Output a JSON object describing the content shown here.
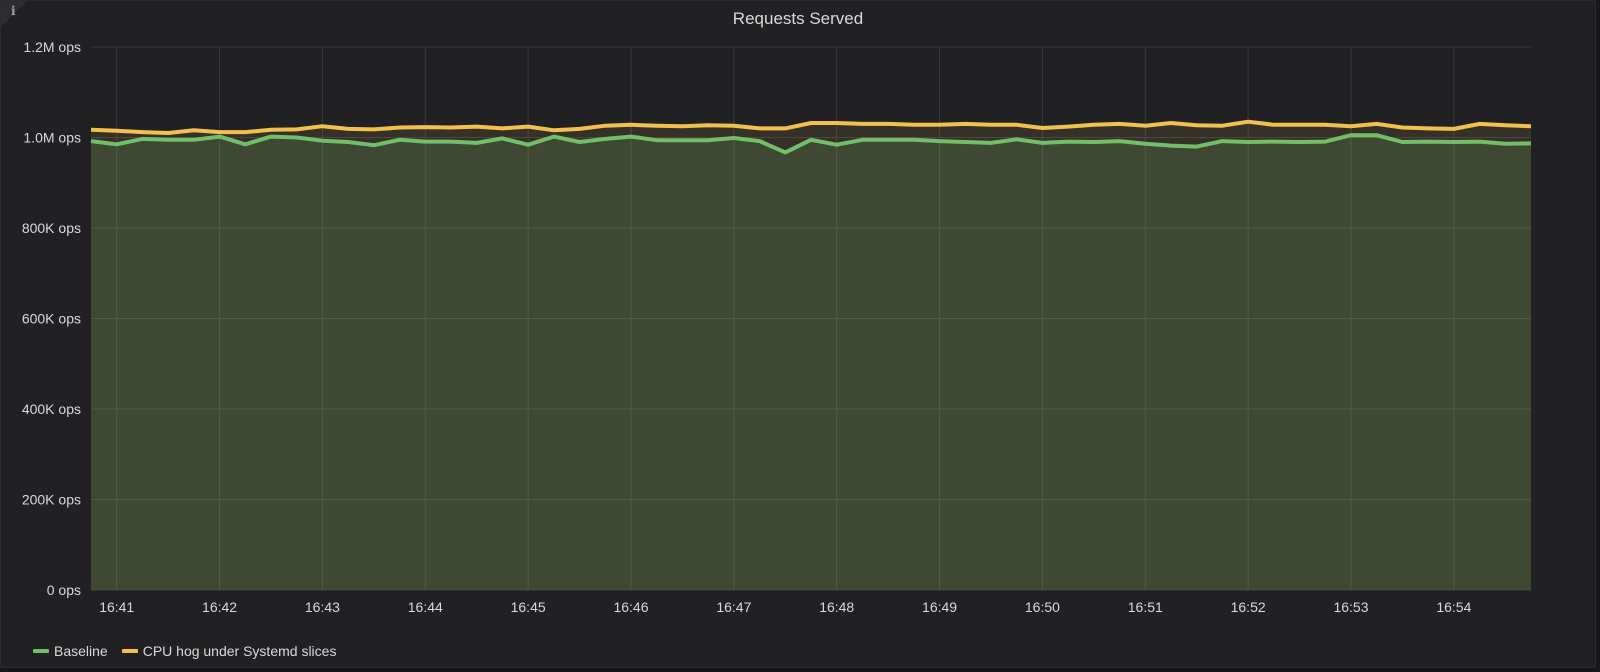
{
  "panel": {
    "title": "Requests Served",
    "info_icon": "info-icon"
  },
  "colors": {
    "background": "#212124",
    "grid": "#3a3a3c",
    "axis_text": "#d8d9da",
    "baseline": "#73bf69",
    "cpu_hog": "#f2c04f"
  },
  "legend": [
    {
      "label": "Baseline",
      "color": "#73bf69"
    },
    {
      "label": "CPU hog under Systemd slices",
      "color": "#f2c04f"
    }
  ],
  "chart_data": {
    "type": "area",
    "title": "Requests Served",
    "xlabel": "",
    "ylabel": "",
    "x_ticks": [
      "16:41",
      "16:42",
      "16:43",
      "16:44",
      "16:45",
      "16:46",
      "16:47",
      "16:48",
      "16:49",
      "16:50",
      "16:51",
      "16:52",
      "16:53",
      "16:54"
    ],
    "y_ticks": [
      "0 ops",
      "200K ops",
      "400K ops",
      "600K ops",
      "800K ops",
      "1.0M ops",
      "1.2M ops"
    ],
    "ylim": [
      0,
      1200000
    ],
    "x_start": "16:40:45",
    "x_step_seconds": 15,
    "grid": true,
    "legend_position": "bottom-left",
    "series": [
      {
        "name": "Baseline",
        "values": [
          992000,
          985000,
          997000,
          995000,
          995000,
          1002000,
          985000,
          1002000,
          1000000,
          993000,
          990000,
          983000,
          995000,
          991000,
          991000,
          988000,
          998000,
          984000,
          1002000,
          990000,
          997000,
          1002000,
          994000,
          994000,
          994000,
          999000,
          992000,
          967000,
          995000,
          984000,
          995000,
          995000,
          995000,
          992000,
          990000,
          988000,
          996000,
          988000,
          991000,
          990000,
          992000,
          986000,
          982000,
          980000,
          992000,
          990000,
          991000,
          990000,
          991000,
          1005000,
          1005000,
          990000,
          991000,
          990000,
          991000,
          986000,
          987000
        ]
      },
      {
        "name": "CPU hog under Systemd slices",
        "values": [
          1017000,
          1015000,
          1012000,
          1010000,
          1016000,
          1012000,
          1012000,
          1017000,
          1018000,
          1025000,
          1019000,
          1018000,
          1022000,
          1023000,
          1022000,
          1024000,
          1020000,
          1024000,
          1016000,
          1019000,
          1026000,
          1028000,
          1026000,
          1025000,
          1027000,
          1026000,
          1020000,
          1020000,
          1032000,
          1032000,
          1030000,
          1030000,
          1028000,
          1028000,
          1030000,
          1028000,
          1028000,
          1021000,
          1024000,
          1028000,
          1030000,
          1026000,
          1032000,
          1027000,
          1026000,
          1035000,
          1028000,
          1028000,
          1028000,
          1025000,
          1030000,
          1022000,
          1020000,
          1019000,
          1030000,
          1027000,
          1025000
        ]
      }
    ]
  }
}
